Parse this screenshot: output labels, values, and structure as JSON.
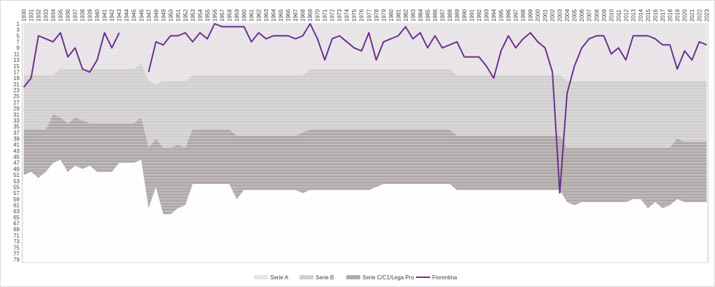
{
  "chart_data": {
    "type": "area",
    "title": "",
    "xlabel": "",
    "ylabel": "",
    "y_reversed": true,
    "ylim": [
      1,
      80
    ],
    "y_ticks_odd": [
      1,
      79
    ],
    "x": [
      1930,
      1931,
      1932,
      1933,
      1934,
      1935,
      1936,
      1937,
      1938,
      1939,
      1940,
      1941,
      1942,
      1943,
      1944,
      1945,
      1946,
      1947,
      1948,
      1949,
      1950,
      1951,
      1952,
      1953,
      1954,
      1955,
      1956,
      1957,
      1958,
      1959,
      1960,
      1961,
      1962,
      1963,
      1964,
      1965,
      1966,
      1967,
      1968,
      1969,
      1970,
      1971,
      1972,
      1973,
      1974,
      1975,
      1976,
      1977,
      1978,
      1979,
      1980,
      1981,
      1982,
      1983,
      1984,
      1985,
      1986,
      1987,
      1988,
      1989,
      1990,
      1991,
      1992,
      1993,
      1994,
      1995,
      1996,
      1997,
      1998,
      1999,
      2000,
      2001,
      2002,
      2003,
      2004,
      2005,
      2006,
      2007,
      2008,
      2009,
      2010,
      2011,
      2012,
      2013,
      2014,
      2015,
      2016,
      2017,
      2018,
      2019,
      2020,
      2021,
      2022,
      2023
    ],
    "series": [
      {
        "name": "Serie A",
        "color": "#e7e3e6",
        "bottom": [
          18,
          18,
          18,
          18,
          18,
          16,
          16,
          16,
          16,
          16,
          16,
          16,
          16,
          16,
          16,
          16,
          14,
          20,
          21,
          20,
          20,
          20,
          20,
          18,
          18,
          18,
          18,
          18,
          18,
          18,
          18,
          18,
          18,
          18,
          18,
          18,
          18,
          18,
          18,
          16,
          16,
          16,
          16,
          16,
          16,
          16,
          16,
          16,
          16,
          16,
          16,
          16,
          16,
          16,
          16,
          16,
          16,
          16,
          16,
          18,
          18,
          18,
          18,
          18,
          18,
          18,
          18,
          18,
          18,
          18,
          18,
          18,
          18,
          18,
          20,
          20,
          20,
          20,
          20,
          20,
          20,
          20,
          20,
          20,
          20,
          20,
          20,
          20,
          20,
          20,
          20,
          20,
          20,
          20
        ]
      },
      {
        "name": "Serie B",
        "color": "#d1cfd0",
        "bottom": [
          36,
          36,
          36,
          36,
          31,
          32,
          34,
          32,
          33,
          34,
          34,
          34,
          34,
          34,
          34,
          34,
          32,
          42,
          39,
          42,
          42,
          41,
          42,
          36,
          36,
          36,
          36,
          36,
          36,
          38,
          38,
          38,
          38,
          38,
          38,
          38,
          38,
          38,
          37,
          36,
          36,
          36,
          36,
          36,
          36,
          36,
          36,
          36,
          36,
          36,
          36,
          36,
          36,
          36,
          36,
          36,
          36,
          36,
          36,
          38,
          38,
          38,
          38,
          38,
          38,
          38,
          38,
          38,
          38,
          38,
          38,
          38,
          38,
          38,
          42,
          42,
          42,
          42,
          42,
          42,
          42,
          42,
          42,
          42,
          42,
          42,
          42,
          42,
          42,
          39,
          40,
          40,
          40,
          40
        ]
      },
      {
        "name": "Serie C/C1/Lega Pro",
        "color": "#afaaa9",
        "bottom": [
          51,
          50,
          52,
          50,
          47,
          46,
          50,
          48,
          49,
          48,
          50,
          50,
          50,
          47,
          47,
          47,
          46,
          62,
          55,
          64,
          64,
          62,
          61,
          54,
          54,
          54,
          54,
          54,
          54,
          59,
          56,
          56,
          56,
          56,
          56,
          56,
          56,
          56,
          57,
          56,
          56,
          56,
          56,
          56,
          56,
          56,
          56,
          56,
          55,
          54,
          54,
          54,
          54,
          54,
          54,
          54,
          54,
          54,
          54,
          56,
          56,
          56,
          56,
          56,
          56,
          56,
          56,
          56,
          56,
          56,
          56,
          56,
          56,
          56,
          60,
          61,
          60,
          60,
          60,
          60,
          60,
          60,
          60,
          59,
          59,
          62,
          60,
          62,
          61,
          59,
          60,
          60,
          60,
          60
        ]
      },
      {
        "name": "Fiorentina",
        "type": "line",
        "color": "#6a2d8e",
        "values": [
          22,
          19,
          5,
          6,
          7,
          4,
          12,
          9,
          16,
          17,
          13,
          4,
          9,
          4,
          null,
          null,
          null,
          17,
          7,
          8,
          5,
          5,
          4,
          7,
          4,
          6,
          1,
          2,
          2,
          2,
          2,
          7,
          4,
          6,
          5,
          5,
          5,
          6,
          5,
          1,
          6,
          13,
          6,
          5,
          7,
          9,
          10,
          4,
          13,
          7,
          6,
          5,
          2,
          6,
          4,
          9,
          5,
          9,
          8,
          7,
          12,
          12,
          12,
          15,
          19,
          10,
          5,
          9,
          6,
          4,
          7,
          9,
          17,
          57,
          24,
          15,
          9,
          6,
          5,
          5,
          11,
          9,
          13,
          5,
          5,
          5,
          6,
          8,
          8,
          16,
          10,
          13,
          7,
          8
        ]
      }
    ],
    "legend": {
      "position": "bottom",
      "entries": [
        "Serie A",
        "Serie B",
        "Serie C/C1/Lega Pro",
        "Fiorentina"
      ]
    },
    "grid": true
  }
}
